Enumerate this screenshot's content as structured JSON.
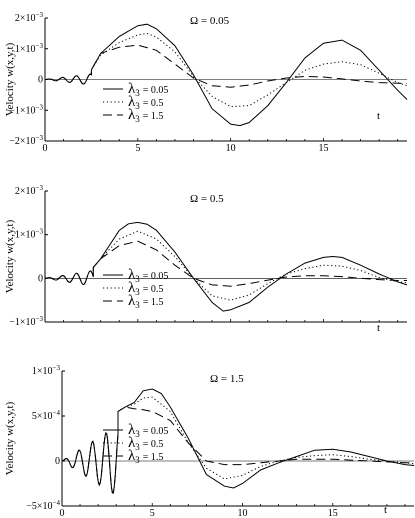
{
  "chart_data": [
    {
      "type": "line",
      "omega_label": "Ω = 0.05",
      "ylabel": "Velocity w(x,y,t)",
      "xlabel": "t",
      "xlim": [
        0,
        19.5
      ],
      "ylim": [
        -0.002,
        0.002
      ],
      "xticks": [
        0,
        5,
        10,
        15
      ],
      "yticks": [
        {
          "value": 0.002,
          "base": "2×10",
          "exp": "−3"
        },
        {
          "value": 0.001,
          "base": "1×10",
          "exp": "−3"
        },
        {
          "value": 0,
          "base": "0",
          "exp": ""
        },
        {
          "value": -0.001,
          "base": "−1×10",
          "exp": "−3"
        },
        {
          "value": -0.002,
          "base": "−2×10",
          "exp": "−3"
        }
      ],
      "legend": [
        {
          "symbol": "λ",
          "sub": "3",
          "value": "= 0.05",
          "style": "solid"
        },
        {
          "symbol": "λ",
          "sub": "3",
          "value": "= 0.5",
          "style": "dotted"
        },
        {
          "symbol": "λ",
          "sub": "3",
          "value": "= 1.5",
          "style": "dashed"
        }
      ],
      "series": [
        {
          "style": "solid",
          "x": [
            0,
            2.5,
            3,
            4,
            5,
            5.5,
            6,
            7,
            8,
            9,
            10,
            10.5,
            11,
            12,
            13,
            14,
            15,
            16,
            17,
            18,
            19,
            19.5
          ],
          "y": [
            0,
            0.00032,
            0.00085,
            0.0014,
            0.00175,
            0.0018,
            0.00165,
            0.0011,
            0.00015,
            -0.00095,
            -0.00145,
            -0.0015,
            -0.0014,
            -0.00085,
            -0.0001,
            0.0007,
            0.00118,
            0.00128,
            0.00095,
            0.0003,
            -0.00035,
            -0.00065
          ]
        },
        {
          "style": "dotted",
          "x": [
            0,
            2.5,
            3,
            4,
            5,
            5.5,
            6,
            7,
            8,
            9,
            10,
            11,
            12,
            13,
            14,
            15,
            16,
            17,
            18,
            19,
            19.5
          ],
          "y": [
            0,
            0.00032,
            0.0008,
            0.0012,
            0.00145,
            0.0015,
            0.00138,
            0.0009,
            0.0001,
            -0.00055,
            -0.00088,
            -0.00085,
            -0.0005,
            -0.0001,
            0.0003,
            0.0005,
            0.00058,
            0.00048,
            0.0002,
            -0.0001,
            -0.0002
          ]
        },
        {
          "style": "dashed",
          "x": [
            0,
            2.5,
            3,
            4,
            5,
            6,
            7,
            8,
            9,
            10,
            11,
            12,
            13,
            14,
            15,
            16,
            17,
            18,
            19,
            19.5
          ],
          "y": [
            0,
            0.00032,
            0.00085,
            0.00105,
            0.00112,
            0.00095,
            0.0005,
            5e-05,
            -0.0002,
            -0.00025,
            -0.00018,
            -5e-05,
            5e-05,
            0.0001,
            8e-05,
            2e-05,
            -5e-05,
            -0.0001,
            -0.00012,
            -0.00013
          ]
        }
      ]
    },
    {
      "type": "line",
      "omega_label": "Ω = 0.5",
      "ylabel": "Velocity w(x,y,t)",
      "xlabel": "t",
      "xlim": [
        0,
        19.5
      ],
      "ylim": [
        -0.001,
        0.002
      ],
      "xticks": [],
      "yticks": [
        {
          "value": 0.002,
          "base": "2×10",
          "exp": "−3"
        },
        {
          "value": 0.001,
          "base": "1×10",
          "exp": "−3"
        },
        {
          "value": 0,
          "base": "0",
          "exp": ""
        },
        {
          "value": -0.001,
          "base": "−1×10",
          "exp": "−3"
        }
      ],
      "legend": [
        {
          "symbol": "λ",
          "sub": "3",
          "value": "= 0.05",
          "style": "solid"
        },
        {
          "symbol": "λ",
          "sub": "3",
          "value": "= 0.5",
          "style": "dotted"
        },
        {
          "symbol": "λ",
          "sub": "3",
          "value": "= 1.5",
          "style": "dashed"
        }
      ],
      "series": [
        {
          "style": "solid",
          "x": [
            0,
            2.6,
            3,
            4,
            4.5,
            5,
            5.5,
            6,
            7,
            8,
            9,
            9.6,
            10,
            11,
            12,
            13,
            14,
            15,
            15.5,
            16,
            17,
            18,
            19,
            19.5
          ],
          "y": [
            0,
            0.00025,
            0.00045,
            0.0011,
            0.00125,
            0.00128,
            0.00124,
            0.0011,
            0.0006,
            0,
            -0.00055,
            -0.00075,
            -0.00072,
            -0.00055,
            -0.0002,
            0.0001,
            0.00035,
            0.00048,
            0.0005,
            0.00048,
            0.0003,
            0.0001,
            -8e-05,
            -0.00015
          ]
        },
        {
          "style": "dotted",
          "x": [
            0,
            2.6,
            3,
            4,
            5,
            6,
            7,
            8,
            9,
            10,
            11,
            12,
            13,
            14,
            15,
            16,
            17,
            18,
            19,
            19.5
          ],
          "y": [
            0,
            0.00025,
            0.00045,
            0.0009,
            0.00108,
            0.0009,
            0.0005,
            0,
            -0.0004,
            -0.0005,
            -0.00038,
            -0.00012,
            0.0001,
            0.00022,
            0.0003,
            0.00028,
            0.00018,
            2e-05,
            -8e-05,
            -0.0001
          ]
        },
        {
          "style": "dashed",
          "x": [
            0,
            2.6,
            3,
            4,
            5,
            6,
            7,
            8,
            9,
            10,
            11,
            12,
            13,
            14,
            15,
            16,
            17,
            18,
            19,
            19.5
          ],
          "y": [
            0,
            0.00025,
            0.00045,
            0.00075,
            0.00085,
            0.00065,
            0.0003,
            0,
            -0.00015,
            -0.00018,
            -0.00012,
            -4e-05,
            3e-05,
            6e-05,
            6e-05,
            4e-05,
            0,
            -3e-05,
            -5e-05,
            -5e-05
          ]
        }
      ]
    },
    {
      "type": "line",
      "omega_label": "Ω = 1.5",
      "ylabel": "Velocity w(x,y,t)",
      "xlabel": "t",
      "xlim": [
        0,
        19.5
      ],
      "ylim": [
        -0.0005,
        0.001
      ],
      "xticks": [
        0,
        5,
        10,
        15
      ],
      "yticks": [
        {
          "value": 0.001,
          "base": "1×10",
          "exp": "−3"
        },
        {
          "value": 0.0005,
          "base": "5×10",
          "exp": "−4"
        },
        {
          "value": 0,
          "base": "0",
          "exp": ""
        },
        {
          "value": -0.0005,
          "base": "−5×10",
          "exp": "−4"
        }
      ],
      "legend": [
        {
          "symbol": "λ",
          "sub": "3",
          "value": "= 0.05",
          "style": "solid"
        },
        {
          "symbol": "λ",
          "sub": "3",
          "value": "= 0.5",
          "style": "dotted"
        },
        {
          "symbol": "λ",
          "sub": "3",
          "value": "= 1.5",
          "style": "dashed"
        }
      ],
      "series": [
        {
          "style": "solid",
          "x": [
            0,
            3.1,
            3.5,
            4,
            4.5,
            5,
            5.5,
            6,
            7,
            8,
            9,
            9.5,
            10,
            11,
            12,
            13,
            14,
            15,
            16,
            17,
            18,
            19,
            19.5
          ],
          "y": [
            0,
            0.00055,
            0.0006,
            0.00065,
            0.00078,
            0.0008,
            0.00075,
            0.0006,
            0.00025,
            -0.00015,
            -0.00028,
            -0.0003,
            -0.00025,
            -0.0001,
            -2e-05,
            5e-05,
            0.00012,
            0.00013,
            0.0001,
            5e-05,
            0,
            -4e-05,
            -5e-05
          ]
        },
        {
          "style": "dotted",
          "x": [
            0,
            3.1,
            3.5,
            4,
            4.5,
            5,
            6,
            7,
            8,
            9,
            10,
            11,
            12,
            13,
            14,
            15,
            16,
            17,
            18,
            19,
            19.5
          ],
          "y": [
            0,
            0.00055,
            0.0006,
            0.00063,
            0.0007,
            0.00071,
            0.00055,
            0.0002,
            -8e-05,
            -0.0002,
            -0.00016,
            -6e-05,
            0,
            4e-05,
            6e-05,
            7e-05,
            5e-05,
            2e-05,
            0,
            -2e-05,
            -3e-05
          ]
        },
        {
          "style": "dashed",
          "x": [
            0,
            3.1,
            3.5,
            4,
            4.5,
            5,
            6,
            7,
            8,
            9,
            10,
            11,
            12,
            13,
            14,
            15,
            16,
            17,
            18,
            19,
            19.5
          ],
          "y": [
            0,
            0.00055,
            0.0006,
            0.00058,
            0.00057,
            0.00055,
            0.00045,
            0.0002,
            0,
            -4e-05,
            -4e-05,
            -2e-05,
            0,
            2e-05,
            2e-05,
            2e-05,
            1e-05,
            0,
            -1e-05,
            -2e-05,
            -2e-05
          ]
        }
      ]
    }
  ]
}
